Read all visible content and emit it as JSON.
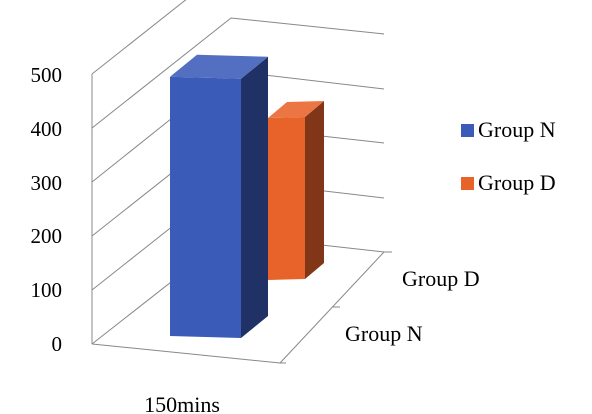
{
  "chart_data": {
    "type": "bar",
    "categories": [
      "150mins"
    ],
    "series": [
      {
        "name": "Group N",
        "values": [
          480
        ],
        "color": "#3a5bb8"
      },
      {
        "name": "Group D",
        "values": [
          300
        ],
        "color": "#e8632a"
      }
    ],
    "depth_labels": [
      "Group D",
      "Group N"
    ],
    "yticks": [
      "0",
      "100",
      "200",
      "300",
      "400",
      "500"
    ],
    "ylim": [
      0,
      500
    ],
    "grid": true,
    "legend_position": "right",
    "projection": "3d"
  }
}
